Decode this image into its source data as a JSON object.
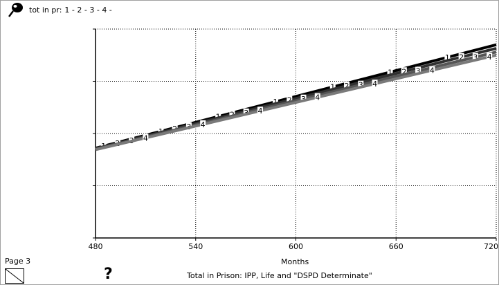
{
  "legend": {
    "variable": "tot in pr:",
    "items": [
      "1 -",
      "2 -",
      "3 -",
      "4 -"
    ]
  },
  "page_label": "Page 3",
  "help_symbol": "?",
  "caption": "Total in Prison: IPP, Life and \"DSPD Determinate\"",
  "chart_data": {
    "type": "line",
    "xlabel": "Months",
    "xlim": [
      480,
      720
    ],
    "x_ticks": [
      "480",
      "540",
      "600",
      "660",
      "720"
    ],
    "ylim": [
      0,
      4
    ],
    "grid": true,
    "series": [
      {
        "name": "1",
        "color": "#000000",
        "x": [
          480,
          720
        ],
        "y": [
          1.72,
          3.7
        ]
      },
      {
        "name": "2",
        "color": "#303030",
        "x": [
          480,
          720
        ],
        "y": [
          1.71,
          3.63
        ]
      },
      {
        "name": "3",
        "color": "#555555",
        "x": [
          480,
          720
        ],
        "y": [
          1.7,
          3.56
        ]
      },
      {
        "name": "4",
        "color": "#7a7a7a",
        "x": [
          480,
          720
        ],
        "y": [
          1.69,
          3.5
        ]
      }
    ]
  }
}
